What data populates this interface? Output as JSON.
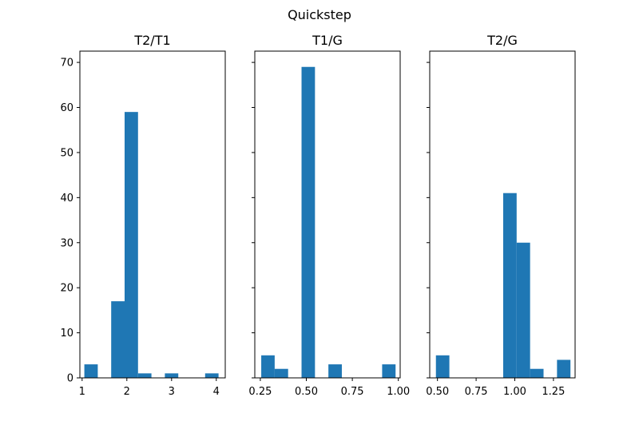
{
  "chart_data": {
    "title": "Quickstep",
    "shared_y": true,
    "colors": {
      "bar": "#1f77b4",
      "axes": "#000000",
      "background": "#ffffff"
    },
    "ylim": [
      0,
      72.5
    ],
    "yticks": [
      0,
      10,
      20,
      30,
      40,
      50,
      60,
      70
    ],
    "ytick_labels": [
      "0",
      "10",
      "20",
      "30",
      "40",
      "50",
      "60",
      "70"
    ],
    "subplots": [
      {
        "type": "bar",
        "title": "T2/T1",
        "xlim": [
          0.95,
          4.2
        ],
        "xticks": [
          1,
          2,
          3,
          4
        ],
        "xtick_labels": [
          "1",
          "2",
          "3",
          "4"
        ],
        "bin_edges": [
          1.05,
          1.35,
          1.65,
          1.95,
          2.25,
          2.55,
          2.85,
          3.15,
          3.45,
          3.75,
          4.05
        ],
        "values": [
          3,
          0,
          17,
          59,
          1,
          0,
          1,
          0,
          0,
          1
        ]
      },
      {
        "type": "bar",
        "title": "T1/G",
        "xlim": [
          0.22,
          1.01
        ],
        "xticks": [
          0.25,
          0.5,
          0.75,
          1.0
        ],
        "xtick_labels": [
          "0.25",
          "0.50",
          "0.75",
          "1.00"
        ],
        "bin_edges": [
          0.255,
          0.328,
          0.401,
          0.474,
          0.547,
          0.62,
          0.693,
          0.766,
          0.839,
          0.912,
          0.985
        ],
        "values": [
          5,
          2,
          0,
          69,
          0,
          3,
          0,
          0,
          0,
          3
        ]
      },
      {
        "type": "bar",
        "title": "T2/G",
        "xlim": [
          0.45,
          1.39
        ],
        "xticks": [
          0.5,
          0.75,
          1.0,
          1.25
        ],
        "xtick_labels": [
          "0.50",
          "0.75",
          "1.00",
          "1.25"
        ],
        "bin_edges": [
          0.49,
          0.577,
          0.664,
          0.751,
          0.838,
          0.925,
          1.012,
          1.099,
          1.186,
          1.273,
          1.36
        ],
        "values": [
          5,
          0,
          0,
          0,
          0,
          41,
          30,
          2,
          0,
          4
        ]
      }
    ]
  }
}
